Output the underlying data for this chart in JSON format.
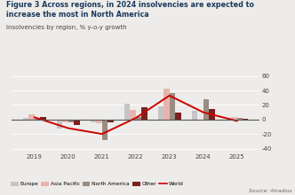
{
  "title_line1": "Figure 3 Across regions, in 2024 insolvencies are expected to",
  "title_line2": "increase the most in North America",
  "subtitle": "Insolvencies by region, % y-o-y growth",
  "source": "Source: Atradius",
  "years": [
    2019,
    2020,
    2021,
    2022,
    2023,
    2024,
    2025
  ],
  "europe": [
    2,
    -12,
    -4,
    22,
    18,
    12,
    -2
  ],
  "asia_pacific": [
    7,
    -4,
    -5,
    13,
    43,
    -2,
    3
  ],
  "north_america": [
    1,
    -4,
    -28,
    3,
    37,
    28,
    2
  ],
  "other": [
    3,
    -7,
    -4,
    17,
    10,
    15,
    1
  ],
  "world": [
    3,
    -12,
    -20,
    2,
    33,
    10,
    -2
  ],
  "bar_width": 0.17,
  "color_europe": "#c5c5c5",
  "color_asia_pacific": "#e8b4ae",
  "color_north_america": "#9a8c80",
  "color_other": "#7a2020",
  "color_world": "#cc0000",
  "ylim": [
    -45,
    68
  ],
  "yticks": [
    -40,
    -20,
    0,
    20,
    40,
    60
  ],
  "bg_color": "#eeecea",
  "title_color": "#1a3a5c",
  "subtitle_color": "#444444",
  "grid_color": "#ffffff",
  "zero_line_color": "#555555"
}
